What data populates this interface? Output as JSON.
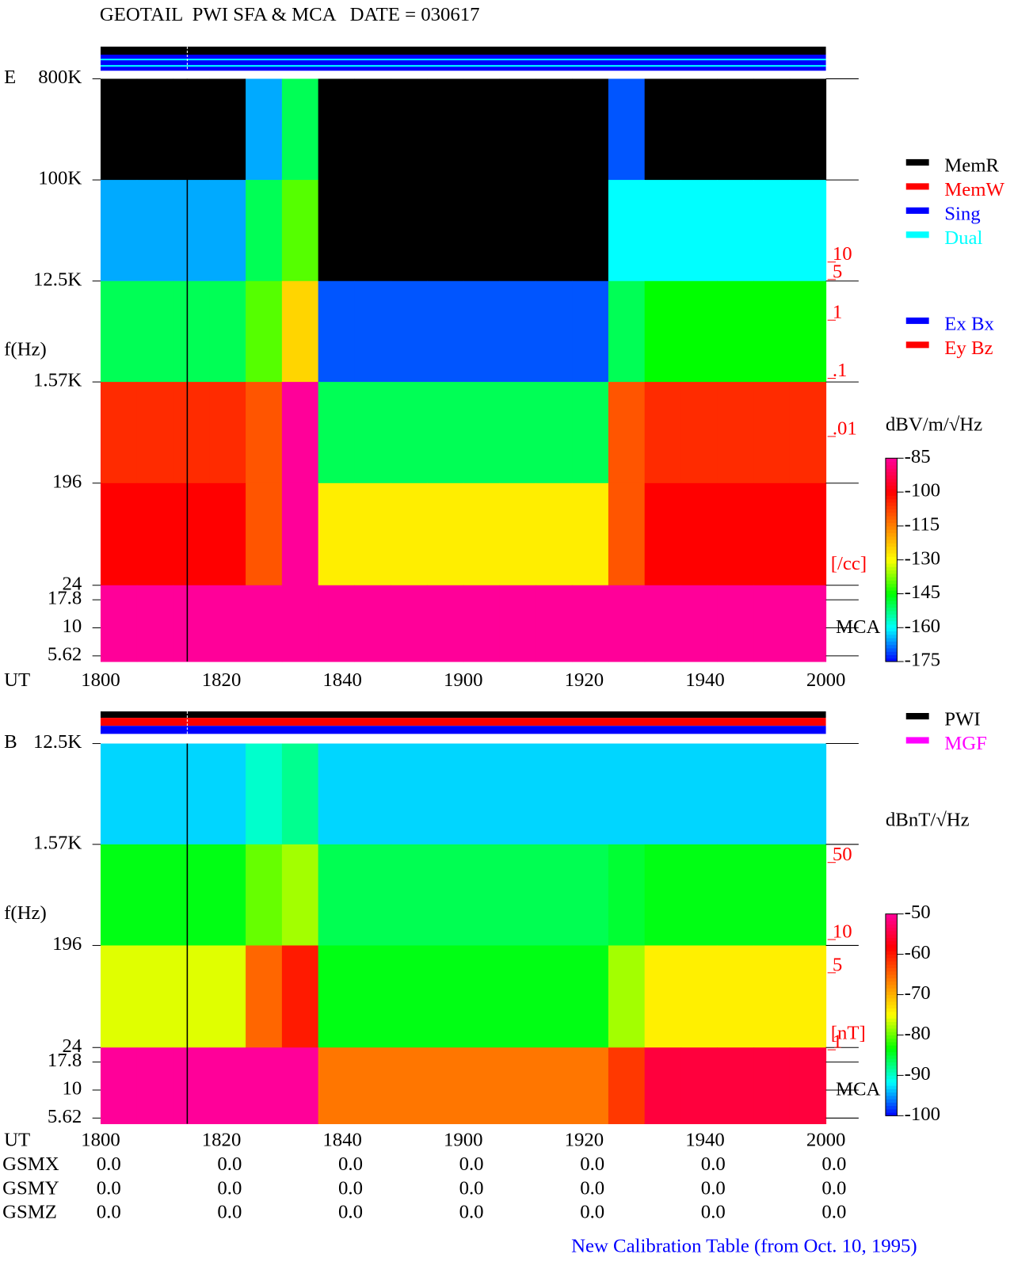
{
  "title": "GEOTAIL  PWI SFA & MCA   DATE = 030617",
  "chart_data": [
    {
      "type": "heatmap",
      "label": "E",
      "y_label": "f(Hz)",
      "x_label": "UT",
      "log_y": true,
      "ylim": [
        5,
        800000
      ],
      "yticks": [
        {
          "value": 800000,
          "label": "800K"
        },
        {
          "value": 100000,
          "label": "100K"
        },
        {
          "value": 12500,
          "label": "12.5K"
        },
        {
          "value": 1570,
          "label": "1.57K"
        },
        196,
        24,
        17.8,
        10,
        5.62
      ],
      "categories": [
        "1800",
        "1820",
        "1840",
        "1900",
        "1920",
        "1940",
        "2000"
      ],
      "y_edges": [
        800000,
        100000,
        12500,
        1570,
        196,
        24,
        5
      ],
      "z": [
        [
          -180,
          -180,
          -180,
          -180,
          -165,
          -150,
          -180,
          -180,
          -180,
          -180,
          -180,
          -180,
          -180,
          -180,
          -170,
          -180,
          -180,
          -180,
          -180,
          -180
        ],
        [
          -165,
          -165,
          -165,
          -165,
          -150,
          -140,
          -180,
          -180,
          -180,
          -180,
          -180,
          -180,
          -180,
          -180,
          -160,
          -160,
          -160,
          -160,
          -160,
          -160
        ],
        [
          -150,
          -150,
          -150,
          -150,
          -140,
          -125,
          -170,
          -170,
          -170,
          -170,
          -170,
          -170,
          -170,
          -170,
          -150,
          -145,
          -145,
          -145,
          -145,
          -145
        ],
        [
          -105,
          -105,
          -105,
          -105,
          -110,
          -85,
          -150,
          -150,
          -150,
          -150,
          -150,
          -150,
          -150,
          -150,
          -110,
          -105,
          -105,
          -105,
          -105,
          -105
        ],
        [
          -100,
          -100,
          -100,
          -100,
          -110,
          -85,
          -128,
          -128,
          -128,
          -128,
          -128,
          -128,
          -128,
          -128,
          -110,
          -100,
          -100,
          -100,
          -100,
          -100
        ],
        [
          -85,
          -85,
          -85,
          -85,
          -85,
          -85,
          -85,
          -85,
          -85,
          -85,
          -85,
          -85,
          -85,
          -85,
          -85,
          -85,
          -85,
          -85,
          -85,
          -85
        ]
      ],
      "zlim": [
        -175,
        -85
      ],
      "zticks": [
        -85,
        -100,
        -115,
        -130,
        -145,
        -160,
        -175
      ],
      "z_label": "dBV/m/√Hz",
      "colorscale": [
        "#0000ff",
        "#00ffff",
        "#00ff00",
        "#ffff00",
        "#ff8000",
        "#ff0000",
        "#ff0099"
      ],
      "under_color": "#000000",
      "density_lim": [
        0.01,
        10
      ],
      "density_ticks": [
        10,
        5,
        1,
        {
          "value": 0.1,
          "label": ".1"
        },
        {
          "value": 0.01,
          "label": ".01"
        }
      ],
      "density_label": "[/cc]",
      "density_color": "#ff0000",
      "mca_label": "MCA",
      "status_legend": [
        {
          "name": "MemR",
          "color": "#000000"
        },
        {
          "name": "MemW",
          "color": "#ff0000"
        },
        {
          "name": "Sing",
          "color": "#0000ff"
        },
        {
          "name": "Dual",
          "color": "#00ffff"
        }
      ],
      "component_legend": [
        {
          "name": "Ex Bx",
          "color": "#0000ff"
        },
        {
          "name": "Ey Bz",
          "color": "#ff0000"
        }
      ]
    },
    {
      "type": "heatmap",
      "label": "B",
      "y_label": "f(Hz)",
      "x_label": "UT",
      "log_y": true,
      "ylim": [
        5,
        12500
      ],
      "yticks": [
        {
          "value": 12500,
          "label": "12.5K"
        },
        {
          "value": 1570,
          "label": "1.57K"
        },
        196,
        24,
        17.8,
        10,
        5.62
      ],
      "categories": [
        "1800",
        "1820",
        "1840",
        "1900",
        "1920",
        "1940",
        "2000"
      ],
      "y_edges": [
        12500,
        1570,
        196,
        24,
        5
      ],
      "z": [
        [
          -93,
          -93,
          -93,
          -93,
          -90,
          -88,
          -93,
          -93,
          -93,
          -93,
          -93,
          -93,
          -93,
          -93,
          -93,
          -93,
          -93,
          -93,
          -93,
          -93
        ],
        [
          -84,
          -84,
          -84,
          -84,
          -80,
          -78,
          -86,
          -86,
          -86,
          -86,
          -86,
          -86,
          -86,
          -86,
          -85,
          -84,
          -84,
          -84,
          -84,
          -84
        ],
        [
          -76,
          -76,
          -76,
          -76,
          -65,
          -60,
          -84,
          -84,
          -84,
          -84,
          -84,
          -84,
          -84,
          -84,
          -78,
          -74,
          -74,
          -74,
          -74,
          -74
        ],
        [
          -50,
          -50,
          -50,
          -50,
          -50,
          -50,
          -66,
          -66,
          -66,
          -66,
          -66,
          -66,
          -66,
          -66,
          -62,
          -55,
          -55,
          -55,
          -55,
          -55
        ]
      ],
      "zlim": [
        -100,
        -50
      ],
      "zticks": [
        -50,
        -60,
        -70,
        -80,
        -90,
        -100
      ],
      "z_label": "dBnT/√Hz",
      "colorscale": [
        "#0000ff",
        "#00ffff",
        "#00ff00",
        "#ffff00",
        "#ff8000",
        "#ff0000",
        "#ff0099"
      ],
      "under_color": "#000000",
      "density_lim": [
        1,
        50
      ],
      "density_ticks": [
        50,
        10,
        5,
        1
      ],
      "density_label": "[nT]",
      "density_color": "#ff0000",
      "mca_label": "MCA",
      "status_legend": [
        {
          "name": "PWI",
          "color": "#000000"
        },
        {
          "name": "MGF",
          "color": "#ff00ff"
        }
      ],
      "component_legend": []
    }
  ],
  "orbit": [
    {
      "name": "GSMX",
      "values": [
        "0.0",
        "0.0",
        "0.0",
        "0.0",
        "0.0",
        "0.0",
        "0.0"
      ]
    },
    {
      "name": "GSMY",
      "values": [
        "0.0",
        "0.0",
        "0.0",
        "0.0",
        "0.0",
        "0.0",
        "0.0"
      ]
    },
    {
      "name": "GSMZ",
      "values": [
        "0.0",
        "0.0",
        "0.0",
        "0.0",
        "0.0",
        "0.0",
        "0.0"
      ]
    }
  ],
  "footer": "New Calibration Table (from Oct. 10, 1995)"
}
